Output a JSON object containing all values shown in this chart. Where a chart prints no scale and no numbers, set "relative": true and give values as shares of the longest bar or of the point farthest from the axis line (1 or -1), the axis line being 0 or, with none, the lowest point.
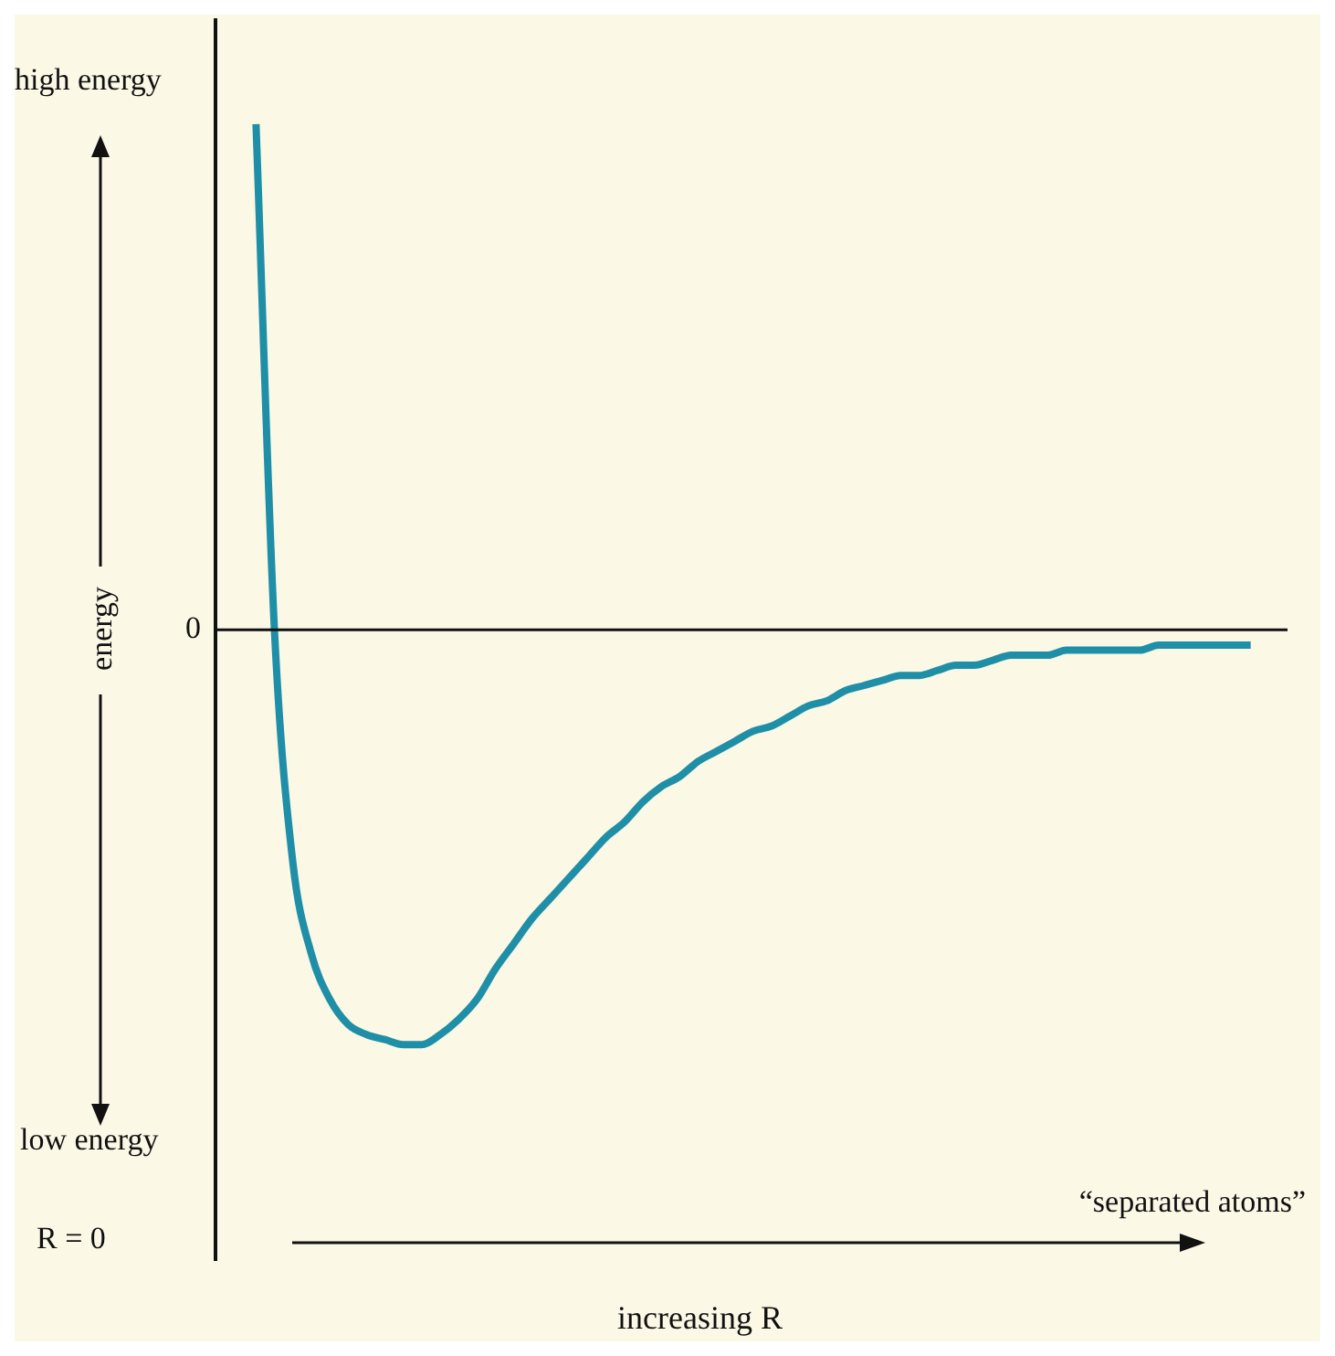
{
  "chart_data": {
    "type": "line",
    "relative": true,
    "ylabel": "energy",
    "categories": [
      null,
      null,
      null,
      null,
      null,
      null,
      null,
      null,
      null,
      null,
      null,
      null,
      null,
      null,
      null,
      null,
      null,
      null,
      null,
      null,
      null,
      null,
      null,
      null,
      null,
      null,
      null,
      null,
      null,
      null,
      null,
      null,
      null,
      null,
      null,
      null,
      null,
      null,
      null,
      null,
      null,
      null,
      null,
      null,
      null,
      null,
      null,
      null,
      null,
      null,
      null,
      null,
      null,
      null,
      null
    ],
    "series": [
      {
        "color": "#1f8fa8",
        "values": [
          1,
          0,
          -0.46,
          -0.64,
          -0.73,
          -0.78,
          -0.8,
          -0.81,
          -0.82,
          -0.82,
          -0.8,
          -0.77,
          -0.73,
          -0.67,
          -0.62,
          -0.57,
          -0.53,
          -0.49,
          -0.45,
          -0.41,
          -0.38,
          -0.34,
          -0.31,
          -0.29,
          -0.26,
          -0.24,
          -0.22,
          -0.2,
          -0.19,
          -0.17,
          -0.15,
          -0.14,
          -0.12,
          -0.11,
          -0.1,
          -0.09,
          -0.09,
          -0.08,
          -0.07,
          -0.07,
          -0.06,
          -0.05,
          -0.05,
          -0.05,
          -0.04,
          -0.04,
          -0.04,
          -0.04,
          -0.04,
          -0.03,
          -0.03,
          -0.03,
          -0.03,
          -0.03,
          -0.03
        ]
      }
    ],
    "ref_lines": [
      {
        "axis": "y",
        "value": 0,
        "label": "0"
      }
    ],
    "annotations": [
      "high energy",
      "low energy",
      "R = 0",
      "“separated atoms”",
      "increasing R"
    ]
  }
}
